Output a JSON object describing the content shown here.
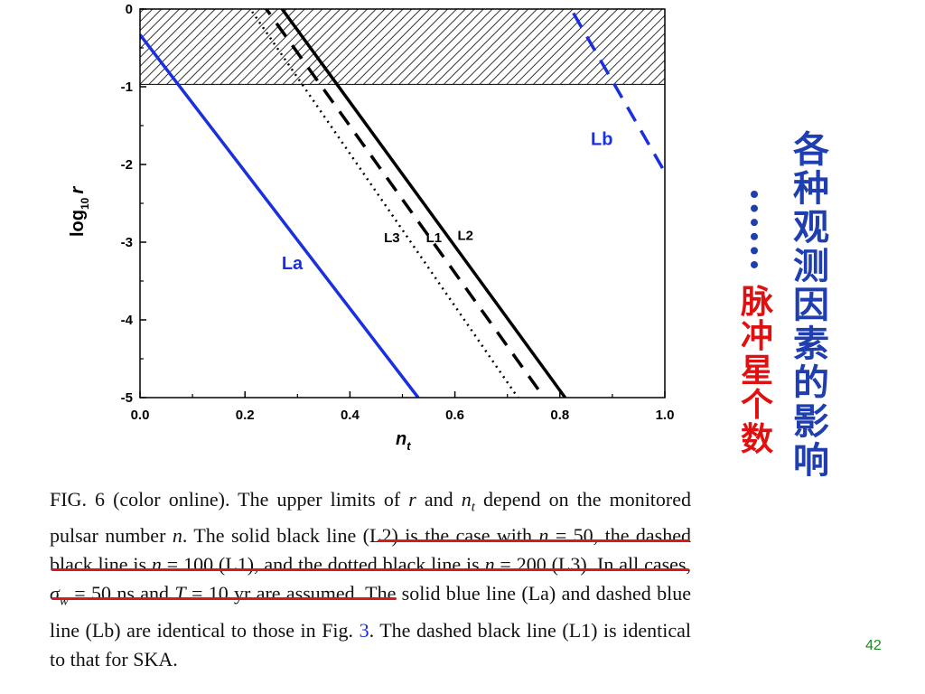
{
  "chart_data": {
    "type": "line",
    "xlabel": "n_t",
    "xlabel_main": "n",
    "xlabel_sub": "t",
    "ylabel": "log10 r",
    "ylabel_main": "log",
    "ylabel_sub": "10",
    "ylabel_var": "r",
    "xlim": [
      0.0,
      1.0
    ],
    "ylim": [
      -5,
      0
    ],
    "xticks": [
      "0.0",
      "0.2",
      "0.4",
      "0.6",
      "0.8",
      "1.0"
    ],
    "yticks": [
      "0",
      "-1",
      "-2",
      "-3",
      "-4",
      "-5"
    ],
    "excluded_region": {
      "y_from": -0.97,
      "y_to": 0
    },
    "series": [
      {
        "name": "La",
        "color": "#1a2fe0",
        "style": "solid",
        "x": [
          0.0,
          0.53
        ],
        "y": [
          -0.33,
          -5
        ]
      },
      {
        "name": "Lb",
        "color": "#1a2fe0",
        "style": "dashed",
        "x": [
          0.8,
          1.0
        ],
        "y": [
          0.25,
          -2.1
        ]
      },
      {
        "name": "L2",
        "color": "#000000",
        "style": "solid",
        "x": [
          0.26,
          0.81
        ],
        "y": [
          0.1,
          -5
        ]
      },
      {
        "name": "L1",
        "color": "#000000",
        "style": "dashed",
        "x": [
          0.23,
          0.77
        ],
        "y": [
          0.1,
          -5
        ]
      },
      {
        "name": "L3",
        "color": "#000000",
        "style": "dotted",
        "x": [
          0.2,
          0.72
        ],
        "y": [
          0.1,
          -5
        ]
      }
    ],
    "labels": [
      {
        "text": "La",
        "x": 0.29,
        "y": -3.35,
        "color": "#1a2fe0"
      },
      {
        "text": "Lb",
        "x": 0.88,
        "y": -1.75,
        "color": "#1a2fe0"
      },
      {
        "text": "L3",
        "x": 0.48,
        "y": -3.0,
        "color": "#000000"
      },
      {
        "text": "L1",
        "x": 0.56,
        "y": -3.0,
        "color": "#000000"
      },
      {
        "text": "L2",
        "x": 0.62,
        "y": -2.97,
        "color": "#000000"
      }
    ]
  },
  "caption": {
    "p1": "FIG. 6 (color online).   The upper limits of ",
    "r": "r",
    "p2": " and ",
    "nt": "n",
    "nt_sub": "t",
    "p3": " depend on the monitored pulsar number ",
    "n": "n",
    "p4": ". ",
    "u1": "The solid black line (L2) is the case with ",
    "u1n": "n",
    "u1b": " = 50, the dashed black line is ",
    "u2n": "n",
    "u2b": " = 100 (L1), and the dotted black line is ",
    "u3n": "n",
    "u3b": " = 200 (L3).",
    "p5": " In all cases, ",
    "sigma": "σ",
    "sigma_sub": "w",
    "p6": " = 50 ns and ",
    "T": "T",
    "p7": " = 10 yr are assumed. The solid blue line (La) and dashed blue line (Lb) are identical to those in Fig. ",
    "fig_ref": "3",
    "p8": ". The dashed black line (L1) is identical to that for SKA."
  },
  "side_title": [
    "各",
    "种",
    "观",
    "测",
    "因",
    "素",
    "的",
    "影",
    "响"
  ],
  "side_subtitle": [
    "脉",
    "冲",
    "星",
    "个",
    "数"
  ],
  "page_number": "42",
  "colors": {
    "title_blue": "#1f3fb0",
    "subtitle_red": "#e01010",
    "underline_red": "#d71a1a",
    "page_num_green": "#1a8a1a"
  }
}
